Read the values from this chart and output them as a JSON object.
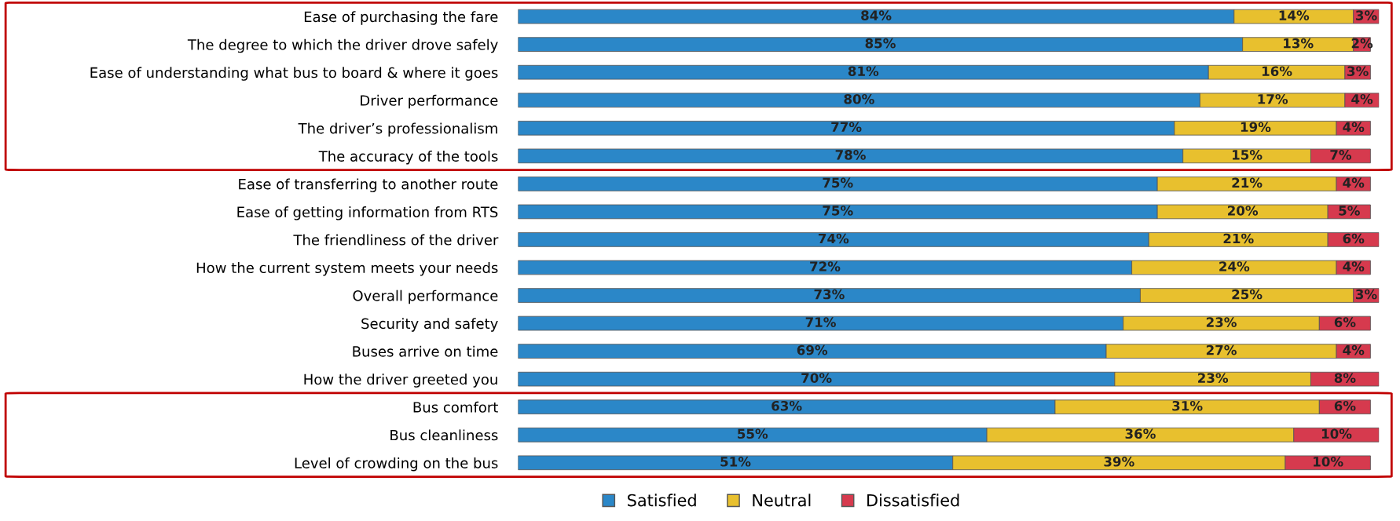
{
  "chart_data": {
    "type": "bar",
    "orientation": "horizontal",
    "stacked": true,
    "legend": "bottom",
    "grid": false,
    "categories": [
      "Ease of purchasing the fare",
      "The degree to which the driver drove safely",
      "Ease of understanding what bus to board & where it goes",
      "Driver performance",
      "The driver’s professionalism",
      "The accuracy of the tools",
      "Ease of transferring to another route",
      "Ease of getting information from RTS",
      "The friendliness of the driver",
      "How the current system meets your needs",
      "Overall performance",
      "Security and safety",
      "Buses arrive on time",
      "How the driver greeted you",
      "Bus comfort",
      "Bus cleanliness",
      "Level of crowding on the bus"
    ],
    "series": [
      {
        "name": "Satisfied",
        "color": "#2b87c8",
        "values": [
          84,
          85,
          81,
          80,
          77,
          78,
          75,
          75,
          74,
          72,
          73,
          71,
          69,
          70,
          63,
          55,
          51
        ],
        "value_labels": [
          "84%",
          "85%",
          "81%",
          "80%",
          "77%",
          "78%",
          "75%",
          "75%",
          "74%",
          "72%",
          "73%",
          "71%",
          "69%",
          "70%",
          "63%",
          "55%",
          "51%"
        ]
      },
      {
        "name": "Neutral",
        "color": "#e8c02e",
        "values": [
          14,
          13,
          16,
          17,
          19,
          15,
          21,
          20,
          21,
          24,
          25,
          23,
          27,
          23,
          31,
          36,
          39
        ],
        "value_labels": [
          "14%",
          "13%",
          "16%",
          "17%",
          "19%",
          "15%",
          "21%",
          "20%",
          "21%",
          "24%",
          "25%",
          "23%",
          "27%",
          "23%",
          "31%",
          "36%",
          "39%"
        ]
      },
      {
        "name": "Dissatisfied",
        "color": "#d63a4e",
        "values": [
          3,
          2,
          3,
          4,
          4,
          7,
          4,
          5,
          6,
          4,
          3,
          6,
          4,
          8,
          6,
          10,
          10
        ],
        "value_labels": [
          "3%",
          "2%",
          "3%",
          "4%",
          "4%",
          "7%",
          "4%",
          "5%",
          "6%",
          "4%",
          "3%",
          "6%",
          "4%",
          "8%",
          "6%",
          "10%",
          "10%"
        ]
      }
    ]
  }
}
